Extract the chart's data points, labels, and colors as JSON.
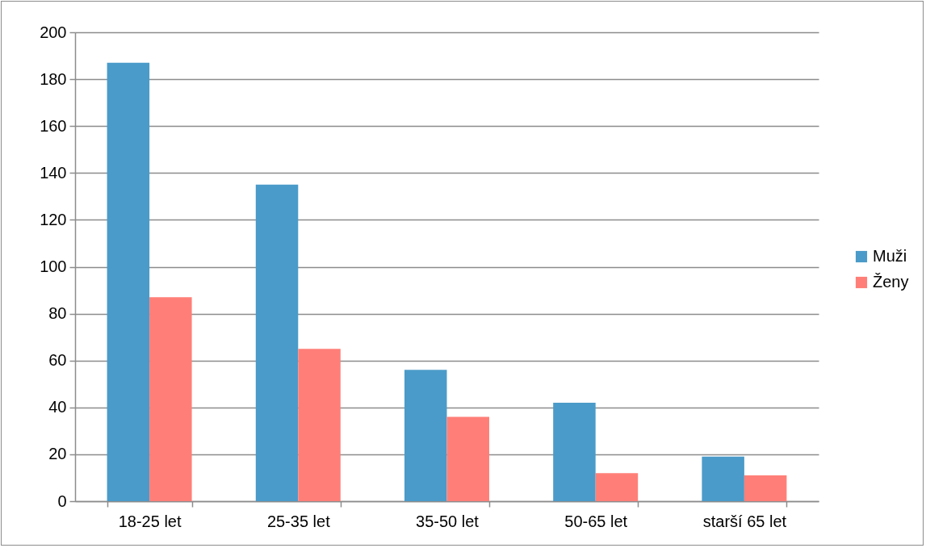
{
  "chart_data": {
    "type": "bar",
    "categories": [
      "18-25 let",
      "25-35 let",
      "35-50 let",
      "50-65 let",
      "starší 65 let"
    ],
    "series": [
      {
        "name": "Muži",
        "color": "#4a9bc9",
        "values": [
          187,
          135,
          56,
          42,
          19
        ]
      },
      {
        "name": "Ženy",
        "color": "#ff7f78",
        "values": [
          87,
          65,
          36,
          12,
          11
        ]
      }
    ],
    "ylim": [
      0,
      200
    ],
    "yticks": [
      0,
      20,
      40,
      60,
      80,
      100,
      120,
      140,
      160,
      180,
      200
    ],
    "grid": "y",
    "legend": "right"
  }
}
